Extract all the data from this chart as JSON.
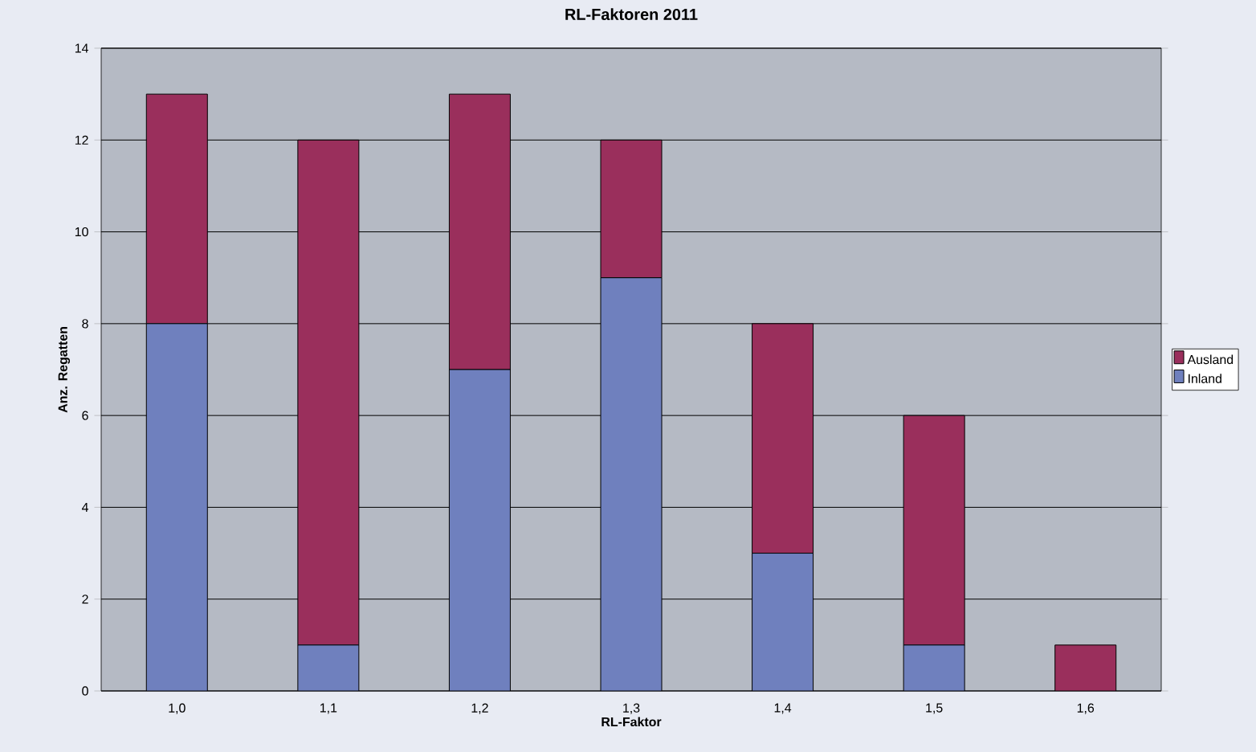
{
  "chart_data": {
    "type": "bar",
    "title": "RL-Faktoren 2011",
    "xlabel": "RL-Faktor",
    "ylabel": "Anz. Regatten",
    "categories": [
      "1,0",
      "1,1",
      "1,2",
      "1,3",
      "1,4",
      "1,5",
      "1,6"
    ],
    "series": [
      {
        "name": "Inland",
        "color": "#6f80be",
        "values": [
          8,
          1,
          7,
          9,
          3,
          1,
          0
        ]
      },
      {
        "name": "Ausland",
        "color": "#9a2f5c",
        "values": [
          5,
          11,
          6,
          3,
          5,
          5,
          1
        ]
      }
    ],
    "stacked": true,
    "ylim": [
      0,
      14
    ],
    "yticks": [
      0,
      2,
      4,
      6,
      8,
      10,
      12,
      14
    ],
    "grid": "y",
    "legend": "right"
  }
}
